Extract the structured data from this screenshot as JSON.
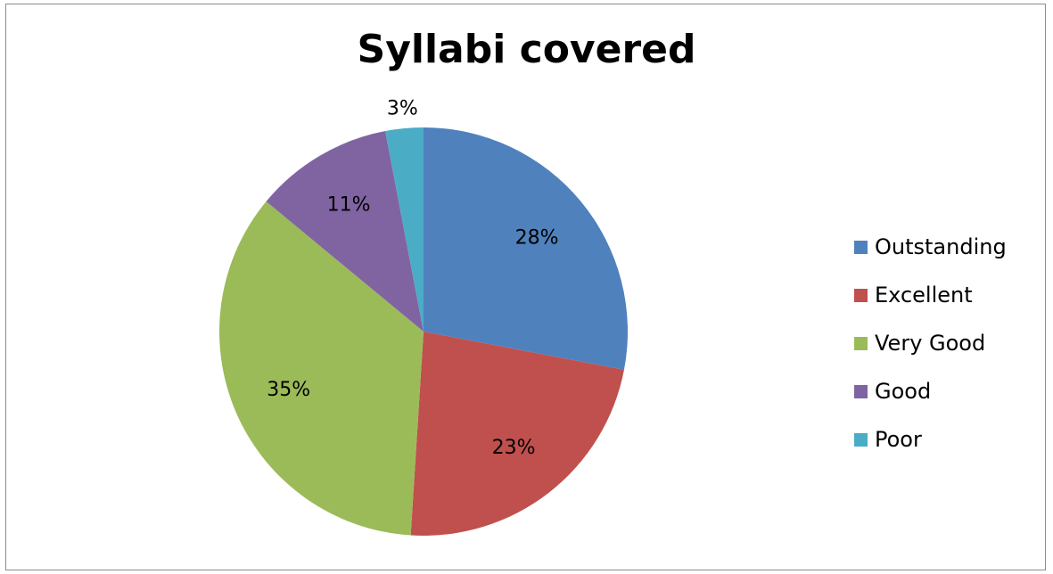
{
  "chart_data": {
    "type": "pie",
    "title": "Syllabi covered",
    "categories": [
      "Outstanding",
      "Excellent",
      "Very Good",
      "Good",
      "Poor"
    ],
    "values": [
      28,
      23,
      35,
      11,
      3
    ],
    "labels": [
      "28%",
      "23%",
      "35%",
      "11%",
      "3%"
    ],
    "colors": [
      "#4F81BD",
      "#C0504D",
      "#9BBB59",
      "#8064A2",
      "#4BACC6"
    ],
    "legend_position": "right"
  }
}
